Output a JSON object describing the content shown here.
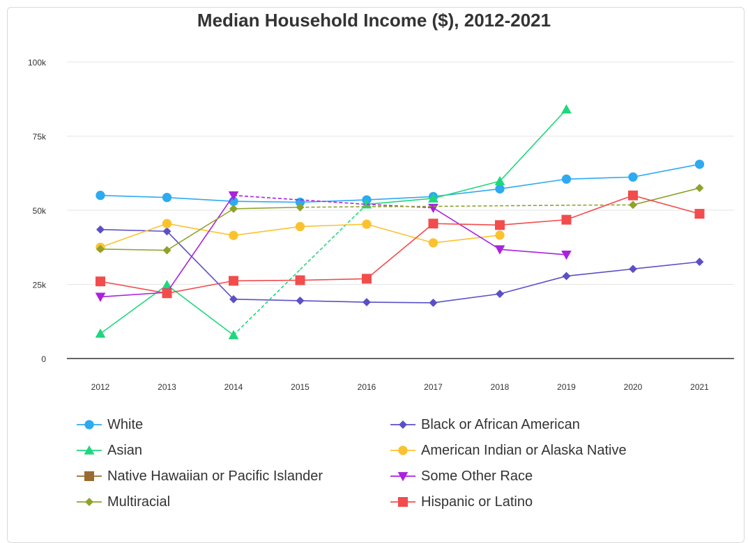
{
  "chart_data": {
    "type": "line",
    "title": "Median Household Income ($), 2012-2021",
    "xlabel": "",
    "ylabel": "",
    "categories": [
      "2012",
      "2013",
      "2014",
      "2015",
      "2016",
      "2017",
      "2018",
      "2019",
      "2020",
      "2021"
    ],
    "ylim": [
      0,
      100000
    ],
    "yticks": [
      0,
      25000,
      50000,
      75000,
      100000
    ],
    "ytick_labels": [
      "0",
      "25k",
      "50k",
      "75k",
      "100k"
    ],
    "grid": true,
    "legend_position": "bottom",
    "series": [
      {
        "name": "White",
        "color": "#2eaaf0",
        "marker": "circle",
        "values": [
          55000,
          54300,
          53000,
          52700,
          53500,
          54600,
          57200,
          60500,
          61200,
          65500
        ]
      },
      {
        "name": "Black or African American",
        "color": "#5b4fc7",
        "marker": "diamond",
        "values": [
          43500,
          42900,
          20000,
          19500,
          19000,
          18800,
          21800,
          27800,
          30200,
          32600
        ]
      },
      {
        "name": "Asian",
        "color": "#1fd77d",
        "marker": "triangle-up",
        "values": [
          8400,
          24800,
          7900,
          30000,
          52000,
          54000,
          59800,
          84000,
          null,
          null
        ]
      },
      {
        "name": "American Indian or Alaska Native",
        "color": "#fbc22d",
        "marker": "circle",
        "values": [
          37500,
          45500,
          41500,
          44500,
          45300,
          39000,
          41600,
          null,
          null,
          null
        ]
      },
      {
        "name": "Native Hawaiian or Pacific Islander",
        "color": "#9a6b2e",
        "marker": "square",
        "values": [
          null,
          null,
          null,
          null,
          null,
          null,
          null,
          null,
          null,
          null
        ]
      },
      {
        "name": "Some Other Race",
        "color": "#aa22dd",
        "marker": "triangle-down",
        "values": [
          20800,
          22300,
          55000,
          53500,
          52000,
          50800,
          36800,
          35000,
          null,
          null
        ]
      },
      {
        "name": "Multiracial",
        "color": "#8ea32b",
        "marker": "diamond",
        "values": [
          36900,
          36500,
          50500,
          51000,
          51200,
          51300,
          51500,
          51700,
          51800,
          57500
        ]
      },
      {
        "name": "Hispanic or Latino",
        "color": "#f24c4c",
        "marker": "square",
        "values": [
          26000,
          22000,
          26200,
          26400,
          26900,
          45500,
          45000,
          46800,
          55000,
          48800
        ]
      }
    ],
    "dashed_segments": [
      {
        "series": "Asian",
        "from": "2014",
        "to": "2016"
      },
      {
        "series": "Some Other Race",
        "from": "2014",
        "to": "2017"
      },
      {
        "series": "Multiracial",
        "from": "2015",
        "to": "2020"
      }
    ]
  }
}
